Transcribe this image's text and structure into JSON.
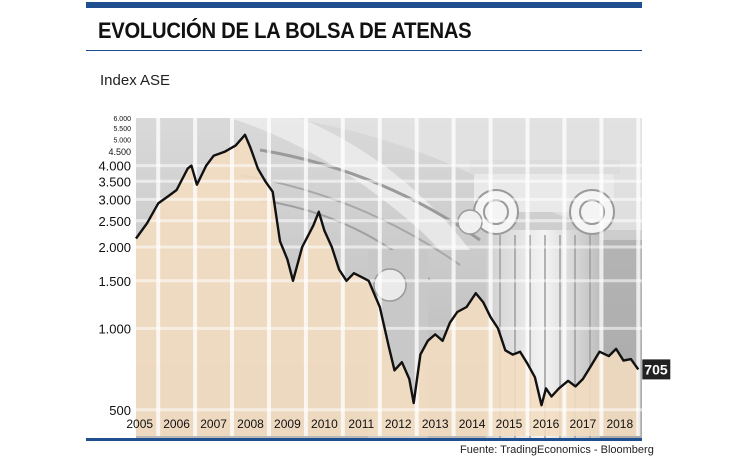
{
  "header": {
    "title": "EVOLUCIÓN DE LA BOLSA DE ATENAS",
    "subtitle": "Index ASE"
  },
  "footer": {
    "source": "Fuente: TradingEconomics - Bloomberg"
  },
  "colors": {
    "accent": "#1f4f8f",
    "fill": "#f4dcc0",
    "line": "#111111",
    "label_bg": "#222222"
  },
  "chart_data": {
    "type": "line",
    "scale": "log",
    "ylim": [
      400,
      6000
    ],
    "y_ticks": [
      {
        "value": 500,
        "label": "500"
      },
      {
        "value": 1000,
        "label": "1.000"
      },
      {
        "value": 1500,
        "label": "1.500"
      },
      {
        "value": 2000,
        "label": "2.000"
      },
      {
        "value": 2500,
        "label": "2.500"
      },
      {
        "value": 3000,
        "label": "3.000"
      },
      {
        "value": 3500,
        "label": "3.500"
      },
      {
        "value": 4000,
        "label": "4.000"
      },
      {
        "value": 4500,
        "label": "4.500"
      },
      {
        "value": 5000,
        "label": "5.000"
      },
      {
        "value": 5500,
        "label": "5.500"
      },
      {
        "value": 6000,
        "label": "6.000"
      }
    ],
    "x_ticks": [
      "2005",
      "2006",
      "2007",
      "2008",
      "2009",
      "2010",
      "2011",
      "2012",
      "2013",
      "2014",
      "2015",
      "2016",
      "2017",
      "2018"
    ],
    "end_label": "705",
    "series": [
      {
        "points": [
          [
            2004.9,
            2150
          ],
          [
            2005.2,
            2450
          ],
          [
            2005.5,
            2900
          ],
          [
            2005.8,
            3100
          ],
          [
            2006.0,
            3250
          ],
          [
            2006.3,
            3900
          ],
          [
            2006.4,
            4000
          ],
          [
            2006.55,
            3400
          ],
          [
            2006.8,
            4000
          ],
          [
            2007.0,
            4350
          ],
          [
            2007.3,
            4500
          ],
          [
            2007.6,
            4750
          ],
          [
            2007.85,
            5200
          ],
          [
            2008.0,
            4650
          ],
          [
            2008.2,
            3900
          ],
          [
            2008.4,
            3500
          ],
          [
            2008.6,
            3200
          ],
          [
            2008.8,
            2100
          ],
          [
            2009.0,
            1800
          ],
          [
            2009.15,
            1500
          ],
          [
            2009.4,
            2000
          ],
          [
            2009.7,
            2400
          ],
          [
            2009.85,
            2700
          ],
          [
            2010.0,
            2300
          ],
          [
            2010.2,
            2000
          ],
          [
            2010.4,
            1650
          ],
          [
            2010.6,
            1500
          ],
          [
            2010.8,
            1600
          ],
          [
            2011.0,
            1550
          ],
          [
            2011.2,
            1500
          ],
          [
            2011.5,
            1200
          ],
          [
            2011.75,
            850
          ],
          [
            2011.9,
            700
          ],
          [
            2012.1,
            750
          ],
          [
            2012.3,
            650
          ],
          [
            2012.42,
            530
          ],
          [
            2012.6,
            800
          ],
          [
            2012.8,
            900
          ],
          [
            2013.0,
            950
          ],
          [
            2013.2,
            900
          ],
          [
            2013.4,
            1050
          ],
          [
            2013.6,
            1150
          ],
          [
            2013.85,
            1200
          ],
          [
            2014.1,
            1350
          ],
          [
            2014.3,
            1250
          ],
          [
            2014.5,
            1100
          ],
          [
            2014.7,
            1000
          ],
          [
            2014.9,
            830
          ],
          [
            2015.1,
            800
          ],
          [
            2015.3,
            820
          ],
          [
            2015.5,
            740
          ],
          [
            2015.7,
            660
          ],
          [
            2015.88,
            520
          ],
          [
            2016.0,
            600
          ],
          [
            2016.15,
            560
          ],
          [
            2016.35,
            600
          ],
          [
            2016.6,
            640
          ],
          [
            2016.8,
            610
          ],
          [
            2017.0,
            650
          ],
          [
            2017.2,
            720
          ],
          [
            2017.45,
            820
          ],
          [
            2017.7,
            790
          ],
          [
            2017.9,
            840
          ],
          [
            2018.1,
            760
          ],
          [
            2018.3,
            770
          ],
          [
            2018.5,
            705
          ]
        ]
      }
    ]
  }
}
